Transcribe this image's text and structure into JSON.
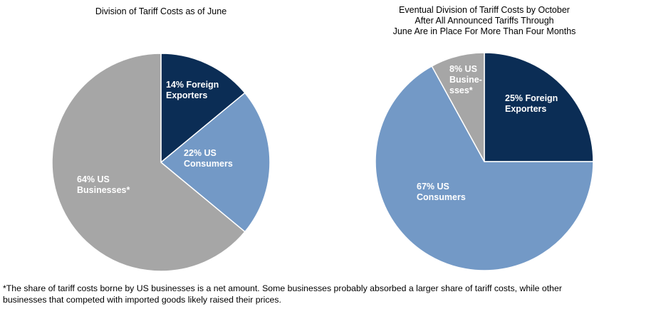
{
  "chart_data": [
    {
      "type": "pie",
      "title": "Division of Tariff Costs as of June",
      "slices": [
        {
          "label": [
            "14% Foreign",
            "Exporters"
          ],
          "value": 14,
          "color": "#0b2d55"
        },
        {
          "label": [
            "22% US",
            "Consumers"
          ],
          "value": 22,
          "color": "#7399c6"
        },
        {
          "label": [
            "64% US",
            "Businesses*"
          ],
          "value": 64,
          "color": "#a6a6a6"
        }
      ]
    },
    {
      "type": "pie",
      "title_lines": [
        "Eventual Division of Tariff Costs by October",
        "After All Announced Tariffs Through",
        "June Are in Place For More Than Four Months"
      ],
      "slices": [
        {
          "label": [
            "25% Foreign",
            "Exporters"
          ],
          "value": 25,
          "color": "#0b2d55"
        },
        {
          "label": [
            "67% US",
            "Consumers"
          ],
          "value": 67,
          "color": "#7399c6"
        },
        {
          "label": [
            "8% US",
            "Busine-",
            "sses*"
          ],
          "value": 8,
          "color": "#a6a6a6"
        }
      ]
    }
  ],
  "footnote_lines": [
    "*The share of tariff costs borne by US businesses is a net amount. Some businesses probably absorbed a larger share of tariff costs, while other",
    "businesses that competed with imported goods likely raised their prices."
  ]
}
